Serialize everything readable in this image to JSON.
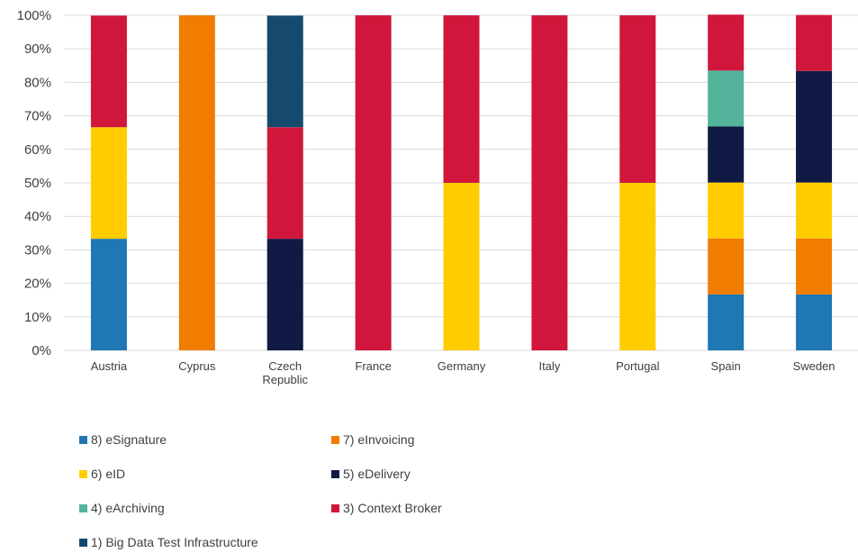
{
  "chart_data": {
    "type": "bar",
    "stacked": "percent",
    "categories": [
      "Austria",
      "Cyprus",
      "Czech Republic",
      "France",
      "Germany",
      "Italy",
      "Portugal",
      "Spain",
      "Sweden"
    ],
    "category_label_lines": [
      [
        "Austria"
      ],
      [
        "Cyprus"
      ],
      [
        "Czech",
        "Republic"
      ],
      [
        "France"
      ],
      [
        "Germany"
      ],
      [
        "Italy"
      ],
      [
        "Portugal"
      ],
      [
        "Spain"
      ],
      [
        "Sweden"
      ]
    ],
    "ylim": [
      0,
      100
    ],
    "yticks": [
      0,
      10,
      20,
      30,
      40,
      50,
      60,
      70,
      80,
      90,
      100
    ],
    "ytick_labels": [
      "0%",
      "10%",
      "20%",
      "30%",
      "40%",
      "50%",
      "60%",
      "70%",
      "80%",
      "90%",
      "100%"
    ],
    "grid": true,
    "legend_position": "bottom",
    "series": [
      {
        "name": "8) eSignature",
        "color": "#1f77b4",
        "values": [
          33.3,
          0,
          0,
          0,
          0,
          0,
          0,
          16.7,
          16.7
        ]
      },
      {
        "name": "7) eInvoicing",
        "color": "#f07c00",
        "values": [
          0,
          100,
          0,
          0,
          0,
          0,
          0,
          16.7,
          16.7
        ]
      },
      {
        "name": "6) eID",
        "color": "#ffcc00",
        "values": [
          33.3,
          0,
          0,
          0,
          50,
          0,
          50,
          16.7,
          16.7
        ]
      },
      {
        "name": "5) eDelivery",
        "color": "#111a45",
        "values": [
          0,
          0,
          33.3,
          0,
          0,
          0,
          0,
          16.7,
          33.3
        ]
      },
      {
        "name": "4) eArchiving",
        "color": "#53b39b",
        "values": [
          0,
          0,
          0,
          0,
          0,
          0,
          0,
          16.7,
          0
        ]
      },
      {
        "name": "3) Context Broker",
        "color": "#d0173b",
        "values": [
          33.3,
          0,
          33.3,
          100,
          50,
          100,
          50,
          16.7,
          16.7
        ]
      },
      {
        "name": "1) Big Data Test Infrastructure",
        "color": "#154a6e",
        "values": [
          0,
          0,
          33.3,
          0,
          0,
          0,
          0,
          0,
          0
        ]
      }
    ],
    "legend_order": [
      "8) eSignature",
      "7) eInvoicing",
      "6) eID",
      "5) eDelivery",
      "4) eArchiving",
      "3) Context Broker",
      "1) Big Data Test Infrastructure"
    ]
  }
}
